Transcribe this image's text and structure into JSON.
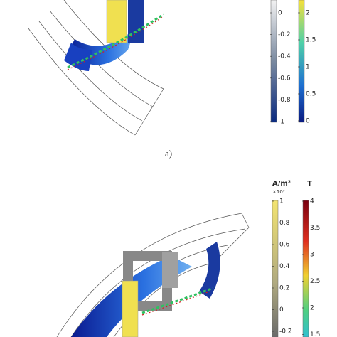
{
  "panel_a": {
    "colorbar_left": {
      "ticks": [
        "0",
        "-0.2",
        "-0.4",
        "-0.6",
        "-0.8",
        "-1"
      ]
    },
    "colorbar_right": {
      "ticks": [
        "2",
        "1.5",
        "1",
        "0.5",
        "0"
      ]
    }
  },
  "caption_a": "a)",
  "panel_b": {
    "unit_left": "A/m²",
    "scale_left": "×10⁷",
    "unit_right": "T",
    "colorbar_left": {
      "ticks": [
        "1",
        "0.8",
        "0.6",
        "0.4",
        "0.2",
        "0",
        "-0.2"
      ]
    },
    "colorbar_right": {
      "ticks": [
        "4",
        "3.5",
        "3",
        "2.5",
        "2",
        "1.5"
      ]
    }
  }
}
